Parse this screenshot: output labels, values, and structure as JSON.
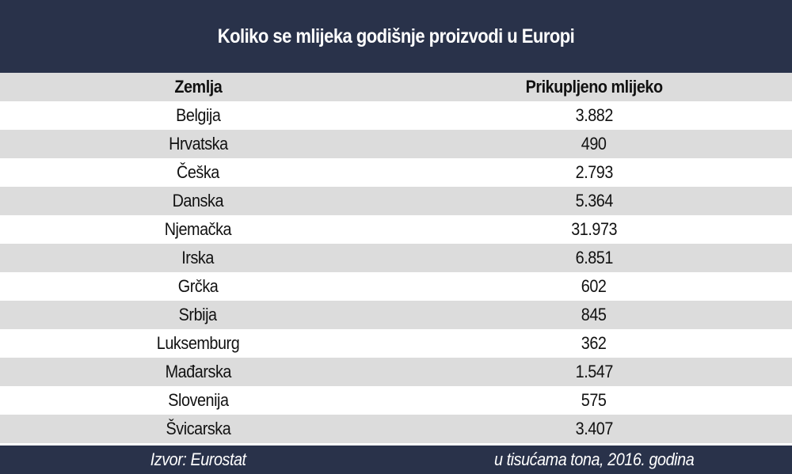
{
  "colors": {
    "title_bar": "#29324a",
    "stripe": "#dcdcdc",
    "row_white": "#ffffff"
  },
  "chart_data": {
    "type": "table",
    "title": "Koliko se mlijeka godišnje proizvodi u Europi",
    "columns": [
      "Zemlja",
      "Prikupljeno mlijeko"
    ],
    "rows": [
      [
        "Belgija",
        "3.882"
      ],
      [
        "Hrvatska",
        "490"
      ],
      [
        "Češka",
        "2.793"
      ],
      [
        "Danska",
        "5.364"
      ],
      [
        "Njemačka",
        "31.973"
      ],
      [
        "Irska",
        "6.851"
      ],
      [
        "Grčka",
        "602"
      ],
      [
        "Srbija",
        "845"
      ],
      [
        "Luksemburg",
        "362"
      ],
      [
        "Mađarska",
        "1.547"
      ],
      [
        "Slovenija",
        "575"
      ],
      [
        "Švicarska",
        "3.407"
      ]
    ],
    "source": "Izvor: Eurostat",
    "unit_note": "u tisućama tona, 2016. godina"
  }
}
